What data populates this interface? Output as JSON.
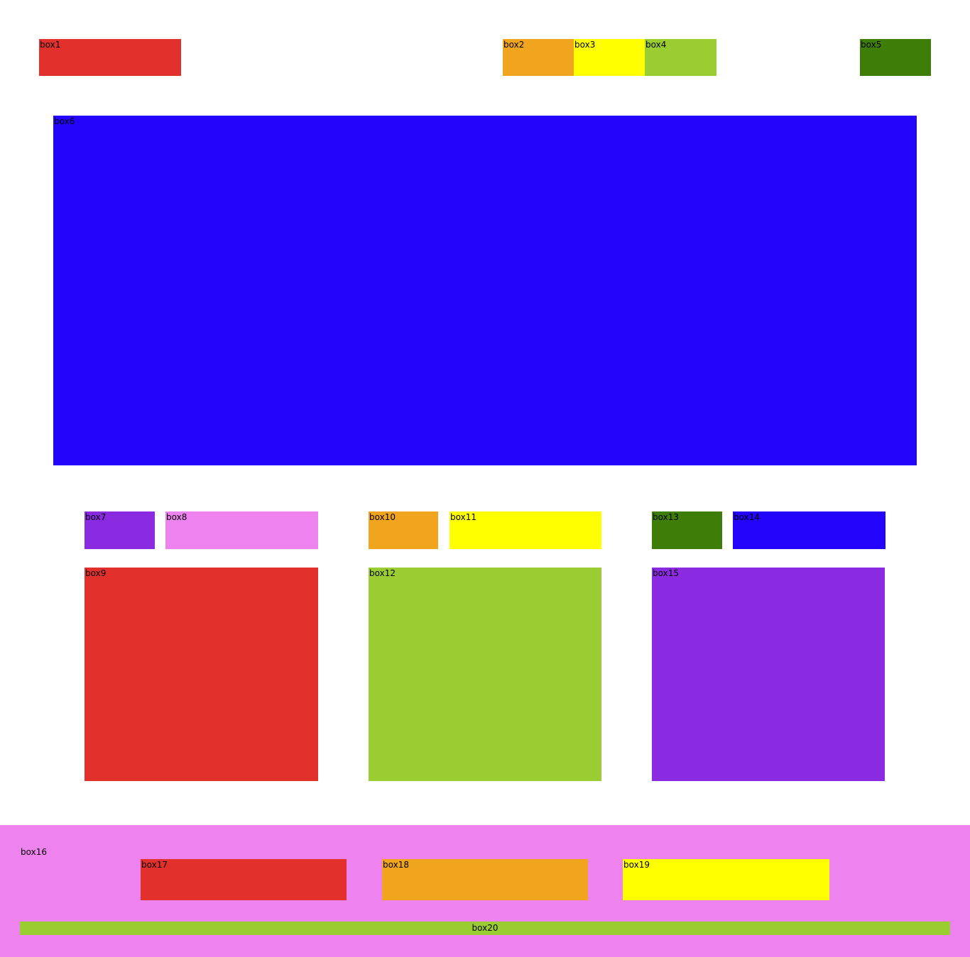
{
  "colors": {
    "red": "#e2302c",
    "orange": "#f1a41d",
    "yellow": "#ffff00",
    "yellowgreen": "#9acd32",
    "green": "#3d7d08",
    "blue": "#2404fc",
    "blueviolet": "#8a2be2",
    "violet": "#ee82ee",
    "label_text": "#000000",
    "background": "#ffffff"
  },
  "boxes": {
    "box1": "box1",
    "box2": "box2",
    "box3": "box3",
    "box4": "box4",
    "box5": "box5",
    "box6": "box6",
    "box7": "box7",
    "box8": "box8",
    "box9": "box9",
    "box10": "box10",
    "box11": "box11",
    "box12": "box12",
    "box13": "box13",
    "box14": "box14",
    "box15": "box15",
    "box16": "box16",
    "box17": "box17",
    "box18": "box18",
    "box19": "box19",
    "box20": "box20"
  }
}
